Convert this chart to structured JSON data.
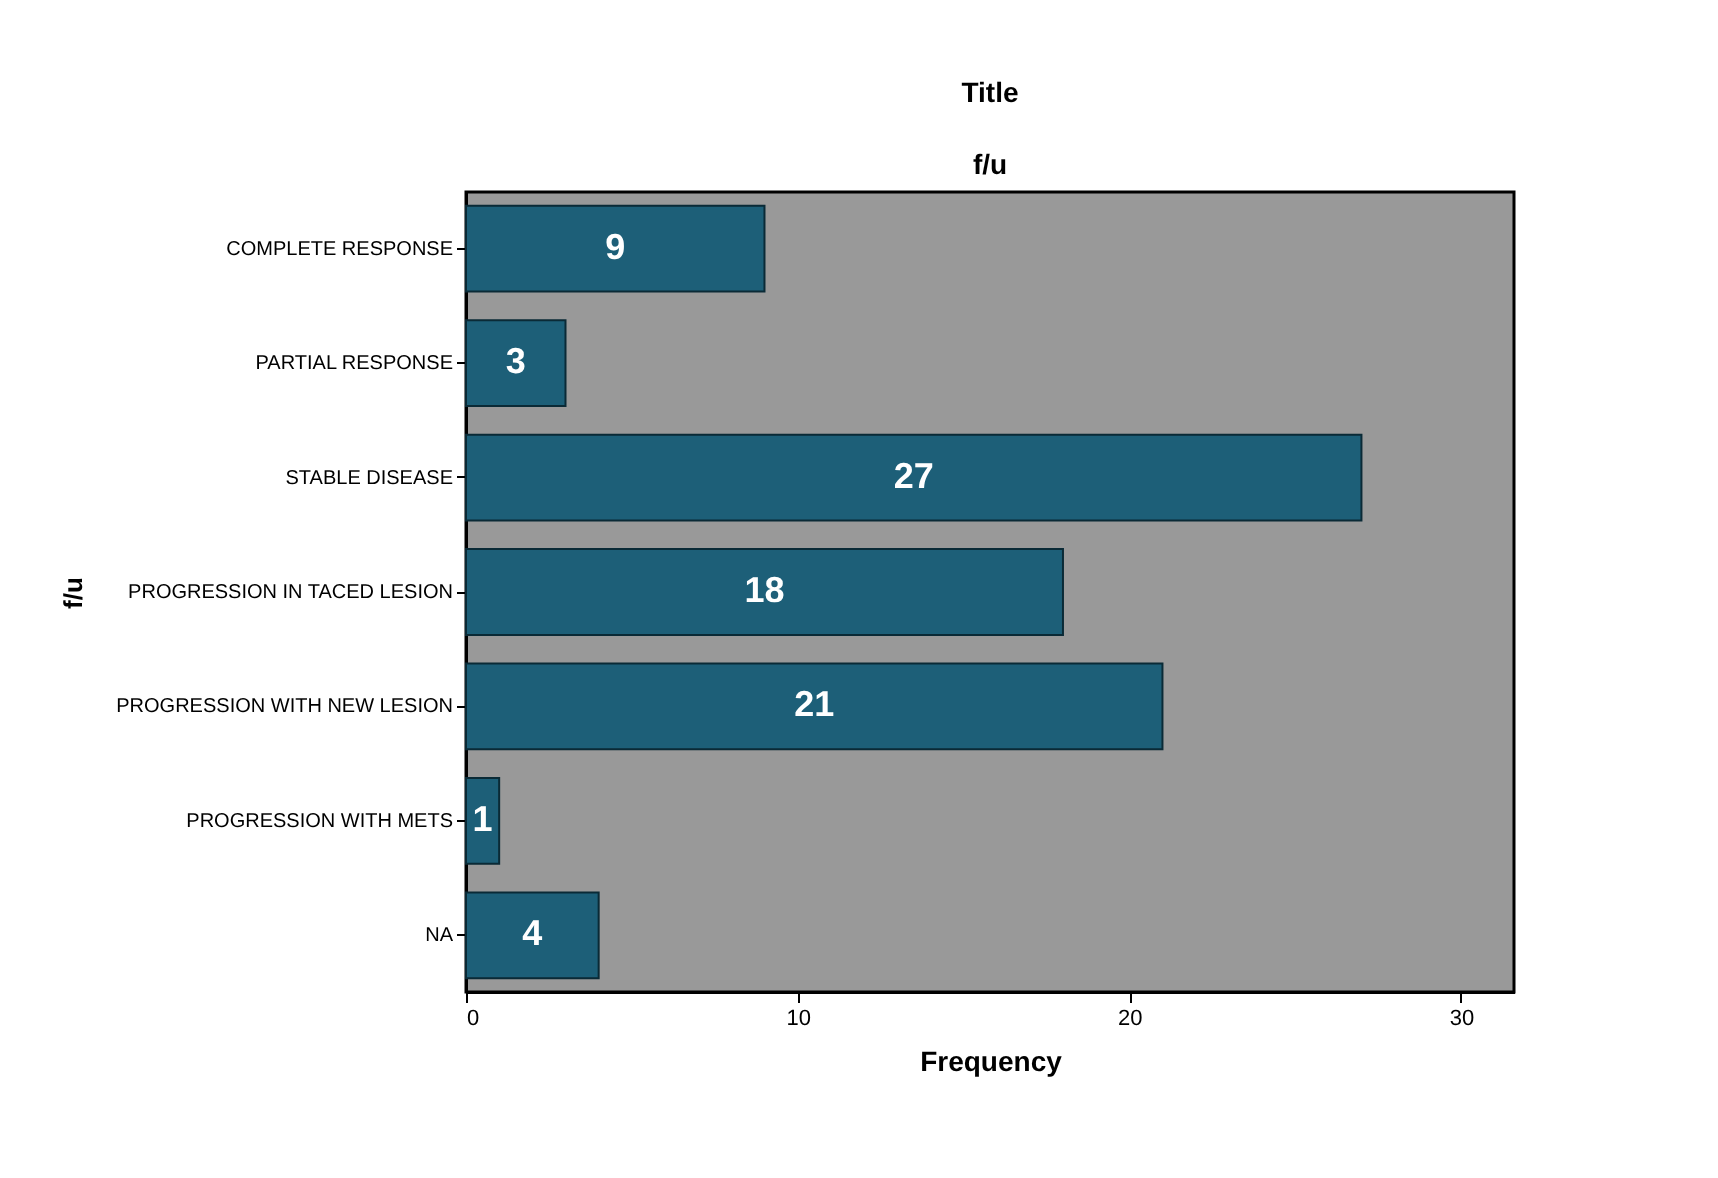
{
  "chart_data": {
    "type": "bar",
    "orientation": "horizontal",
    "title": "Title",
    "subtitle": "f/u",
    "xlabel": "Frequency",
    "ylabel": "f/u",
    "categories": [
      "COMPLETE RESPONSE",
      "PARTIAL RESPONSE",
      "STABLE DISEASE",
      "PROGRESSION IN TACED LESION",
      "PROGRESSION WITH NEW LESION",
      "PROGRESSION WITH METS",
      "NA"
    ],
    "values": [
      9,
      3,
      27,
      18,
      21,
      1,
      4
    ],
    "color": "#1d5f78",
    "xlim": [
      0,
      31.6
    ],
    "xticks": [
      0,
      10,
      20,
      30
    ],
    "grid": false,
    "data_labels": true
  }
}
